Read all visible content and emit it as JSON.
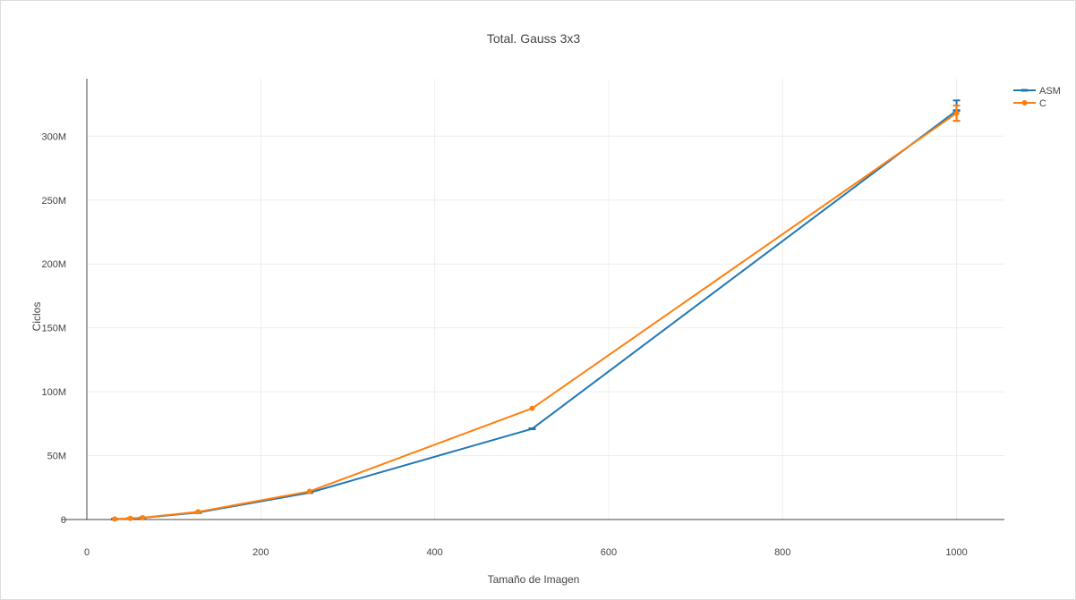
{
  "chart_data": {
    "type": "line",
    "title": "Total. Gauss 3x3",
    "xlabel": "Tamaño de Imagen",
    "ylabel": "Ciclos",
    "xlim": [
      0,
      1055
    ],
    "ylim": [
      0,
      345
    ],
    "x_ticks": [
      0,
      200,
      400,
      600,
      800,
      1000
    ],
    "x_tick_labels": [
      "0",
      "200",
      "400",
      "600",
      "800",
      "1000"
    ],
    "y_ticks": [
      0,
      50,
      100,
      150,
      200,
      250,
      300
    ],
    "y_tick_labels": [
      "0",
      "50M",
      "100M",
      "150M",
      "200M",
      "250M",
      "300M"
    ],
    "y_unit": "millions of cycles",
    "grid": true,
    "legend_position": "top-right",
    "series": [
      {
        "name": "ASM",
        "color": "#1f77b4",
        "marker": "dash",
        "x": [
          32,
          50,
          64,
          128,
          256,
          512,
          1000
        ],
        "y": [
          0.3,
          0.8,
          1.3,
          5.5,
          21,
          71,
          320
        ],
        "error": [
          0.1,
          0.1,
          0.1,
          0.3,
          0.6,
          1,
          8
        ]
      },
      {
        "name": "C",
        "color": "#ff7f0e",
        "marker": "circle",
        "x": [
          32,
          50,
          64,
          128,
          256,
          512,
          1000
        ],
        "y": [
          0.4,
          0.9,
          1.4,
          6,
          22,
          87,
          318
        ],
        "error": [
          0.1,
          0.1,
          0.1,
          0.3,
          0.6,
          1,
          6
        ]
      }
    ]
  }
}
